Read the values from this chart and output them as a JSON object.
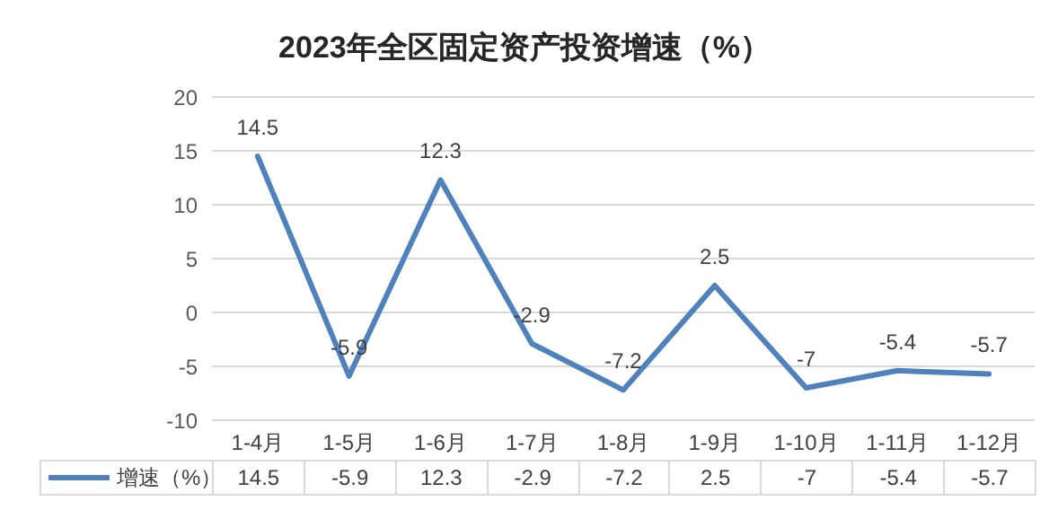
{
  "chart_data": {
    "type": "line",
    "title": "2023年全区固定资产投资增速（%）",
    "categories": [
      "1-4月",
      "1-5月",
      "1-6月",
      "1-7月",
      "1-8月",
      "1-9月",
      "1-10月",
      "1-11月",
      "1-12月"
    ],
    "series": [
      {
        "name": "增速（%）",
        "color": "#4f81bd",
        "values": [
          14.5,
          -5.9,
          12.3,
          -2.9,
          -7.2,
          2.5,
          -7,
          -5.4,
          -5.7
        ],
        "value_labels": [
          "14.5",
          "-5.9",
          "12.3",
          "-2.9",
          "-7.2",
          "2.5",
          "-7",
          "-5.4",
          "-5.7"
        ]
      }
    ],
    "annotations": [
      "14.5",
      "-5.9",
      "12.3",
      "-2.9",
      "-7.2",
      "2.5",
      "-7",
      "-5.4",
      "-5.7"
    ],
    "ylim": [
      -10,
      20
    ],
    "yticks": [
      -10,
      -5,
      0,
      5,
      10,
      15,
      20
    ],
    "grid": "y",
    "legend": "bottom",
    "marker": "none",
    "line_style": "solid"
  }
}
